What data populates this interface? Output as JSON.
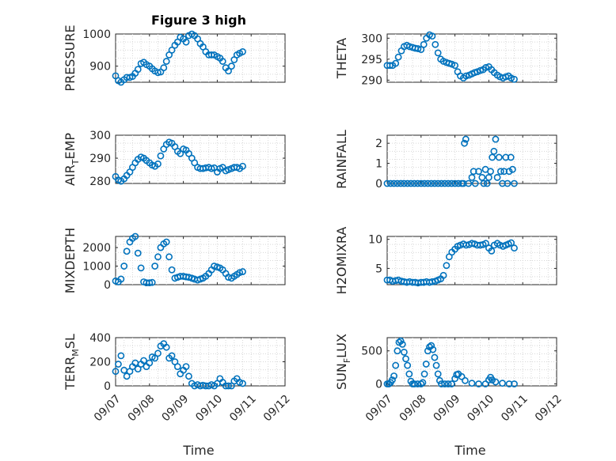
{
  "figure": {
    "title": "Figure 3 high",
    "marker_color": "#0072BD",
    "xlabel": "Time"
  },
  "chart_data": [
    {
      "id": "pressure",
      "type": "scatter",
      "ylabel": "PRESSURE",
      "ylim": [
        850,
        1000
      ],
      "yticks": [
        900,
        1000
      ],
      "x_tick_labels": [],
      "grid": true,
      "x": [
        0,
        0.08,
        0.16,
        0.25,
        0.33,
        0.42,
        0.5,
        0.58,
        0.66,
        0.75,
        0.83,
        0.91,
        1.0,
        1.08,
        1.16,
        1.25,
        1.33,
        1.42,
        1.5,
        1.58,
        1.66,
        1.75,
        1.83,
        1.91,
        2.0,
        2.08,
        2.16,
        2.25,
        2.33,
        2.42,
        2.5,
        2.58,
        2.66,
        2.75,
        2.83,
        2.91,
        3.0,
        3.08,
        3.16,
        3.25,
        3.33,
        3.42,
        3.5,
        3.58,
        3.66,
        3.75
      ],
      "y": [
        870,
        855,
        850,
        858,
        865,
        865,
        868,
        878,
        890,
        908,
        912,
        905,
        900,
        892,
        885,
        880,
        882,
        895,
        915,
        935,
        950,
        965,
        975,
        990,
        985,
        975,
        995,
        1000,
        995,
        985,
        970,
        960,
        945,
        935,
        935,
        935,
        930,
        925,
        915,
        895,
        885,
        900,
        920,
        935,
        940,
        945
      ]
    },
    {
      "id": "theta",
      "type": "scatter",
      "ylabel": "THETA",
      "ylim": [
        289.5,
        301
      ],
      "yticks": [
        290,
        295,
        300
      ],
      "x_tick_labels": [],
      "grid": true,
      "x": [
        0,
        0.08,
        0.16,
        0.25,
        0.33,
        0.42,
        0.5,
        0.58,
        0.66,
        0.75,
        0.83,
        0.91,
        1.0,
        1.08,
        1.16,
        1.25,
        1.33,
        1.42,
        1.5,
        1.58,
        1.66,
        1.75,
        1.83,
        1.91,
        2.0,
        2.08,
        2.16,
        2.25,
        2.33,
        2.42,
        2.5,
        2.58,
        2.66,
        2.75,
        2.83,
        2.91,
        3.0,
        3.08,
        3.16,
        3.25,
        3.33,
        3.42,
        3.5,
        3.58,
        3.66,
        3.75
      ],
      "y": [
        293.5,
        293.5,
        293.5,
        294,
        295.5,
        297,
        298,
        298.3,
        298,
        297.8,
        297.6,
        297.5,
        297.3,
        298.5,
        300,
        300.8,
        300.5,
        298.5,
        296.5,
        295,
        294.5,
        294.2,
        294,
        293.8,
        293.5,
        292,
        291,
        290.5,
        291,
        291.2,
        291.5,
        291.8,
        292,
        292.3,
        292.5,
        293,
        293.2,
        292.5,
        291.8,
        291.2,
        290.8,
        290.5,
        290.8,
        291,
        290.5,
        290.2
      ]
    },
    {
      "id": "air_temp",
      "type": "scatter",
      "ylabel": "AIR_TEMP",
      "ylabel_display": "AIR",
      "ylabel_sub": "T",
      "ylabel_tail": "EMP",
      "ylim": [
        279,
        300
      ],
      "yticks": [
        280,
        290,
        300
      ],
      "x_tick_labels": [],
      "grid": true,
      "x": [
        0,
        0.08,
        0.16,
        0.25,
        0.33,
        0.42,
        0.5,
        0.58,
        0.66,
        0.75,
        0.83,
        0.91,
        1.0,
        1.08,
        1.16,
        1.25,
        1.33,
        1.42,
        1.5,
        1.58,
        1.66,
        1.75,
        1.83,
        1.91,
        2.0,
        2.08,
        2.16,
        2.25,
        2.33,
        2.42,
        2.5,
        2.58,
        2.66,
        2.75,
        2.83,
        2.91,
        3.0,
        3.08,
        3.16,
        3.25,
        3.33,
        3.42,
        3.5,
        3.58,
        3.66,
        3.75
      ],
      "y": [
        282,
        280.5,
        280,
        281,
        282.5,
        284,
        286,
        288,
        289.5,
        290.5,
        290,
        289,
        288,
        287,
        286.5,
        287.5,
        291,
        294,
        296,
        297,
        296.5,
        295,
        293,
        292,
        294,
        293.5,
        292,
        290,
        288,
        286,
        285.5,
        285.5,
        285.8,
        286,
        285.5,
        285.8,
        284,
        285.5,
        286,
        284.5,
        285,
        285.5,
        286,
        286,
        285.5,
        286.5
      ]
    },
    {
      "id": "rainfall",
      "type": "scatter",
      "ylabel": "RAINFALL",
      "ylim": [
        0,
        2.4
      ],
      "yticks": [
        0,
        1,
        2
      ],
      "x_tick_labels": [],
      "grid": true,
      "x": [
        0,
        0.1,
        0.2,
        0.3,
        0.4,
        0.5,
        0.6,
        0.7,
        0.8,
        0.9,
        1.0,
        1.1,
        1.2,
        1.3,
        1.4,
        1.5,
        1.6,
        1.7,
        1.8,
        1.9,
        2.0,
        2.1,
        2.2,
        2.25,
        2.28,
        2.32,
        2.4,
        2.5,
        2.55,
        2.6,
        2.7,
        2.8,
        2.85,
        2.9,
        2.95,
        3.0,
        3.05,
        3.1,
        3.15,
        3.2,
        3.25,
        3.3,
        3.35,
        3.4,
        3.45,
        3.5,
        3.55,
        3.6,
        3.65,
        3.7,
        3.75
      ],
      "y": [
        0,
        0,
        0,
        0,
        0,
        0,
        0,
        0,
        0,
        0,
        0,
        0,
        0,
        0,
        0,
        0,
        0,
        0,
        0,
        0,
        0,
        0,
        0,
        0,
        2.0,
        2.2,
        0,
        0.3,
        0.6,
        0,
        0.6,
        0.3,
        0,
        0.7,
        0,
        0.3,
        0.6,
        1.3,
        1.6,
        2.2,
        0.3,
        1.3,
        0.6,
        0,
        0.6,
        1.3,
        0,
        0.6,
        1.3,
        0.7,
        0
      ]
    },
    {
      "id": "mixdepth",
      "type": "scatter",
      "ylabel": "MIXDEPTH",
      "ylim": [
        0,
        2600
      ],
      "yticks": [
        0,
        1000,
        2000
      ],
      "x_tick_labels": [],
      "grid": true,
      "x": [
        0,
        0.08,
        0.16,
        0.25,
        0.33,
        0.42,
        0.5,
        0.58,
        0.66,
        0.75,
        0.83,
        0.91,
        1.0,
        1.08,
        1.16,
        1.25,
        1.33,
        1.42,
        1.5,
        1.58,
        1.66,
        1.75,
        1.83,
        1.91,
        2.0,
        2.08,
        2.16,
        2.25,
        2.33,
        2.42,
        2.5,
        2.58,
        2.66,
        2.75,
        2.83,
        2.91,
        3.0,
        3.08,
        3.16,
        3.25,
        3.33,
        3.42,
        3.5,
        3.58,
        3.66,
        3.75
      ],
      "y": [
        200,
        150,
        300,
        1000,
        1800,
        2300,
        2500,
        2600,
        1700,
        900,
        150,
        100,
        100,
        120,
        1000,
        1500,
        2000,
        2200,
        2300,
        1500,
        800,
        350,
        400,
        450,
        450,
        420,
        400,
        350,
        300,
        250,
        300,
        350,
        450,
        600,
        800,
        1000,
        950,
        900,
        800,
        600,
        400,
        350,
        450,
        550,
        650,
        700
      ]
    },
    {
      "id": "h2omixra",
      "type": "scatter",
      "ylabel": "H2OMIXRA",
      "ylim": [
        2.2,
        10.5
      ],
      "yticks": [
        5,
        10
      ],
      "x_tick_labels": [],
      "grid": true,
      "x": [
        0,
        0.08,
        0.16,
        0.25,
        0.33,
        0.42,
        0.5,
        0.58,
        0.66,
        0.75,
        0.83,
        0.91,
        1.0,
        1.08,
        1.16,
        1.25,
        1.33,
        1.42,
        1.5,
        1.58,
        1.66,
        1.75,
        1.83,
        1.91,
        2.0,
        2.08,
        2.16,
        2.25,
        2.33,
        2.42,
        2.5,
        2.58,
        2.66,
        2.75,
        2.83,
        2.91,
        3.0,
        3.08,
        3.16,
        3.25,
        3.33,
        3.42,
        3.5,
        3.58,
        3.66,
        3.75
      ],
      "y": [
        3.0,
        3.0,
        2.8,
        2.9,
        3.0,
        2.8,
        2.7,
        2.6,
        2.7,
        2.6,
        2.6,
        2.5,
        2.6,
        2.6,
        2.7,
        2.6,
        2.7,
        2.8,
        3.0,
        3.2,
        3.8,
        5.5,
        7.0,
        7.8,
        8.3,
        8.8,
        9.0,
        9.2,
        9.0,
        9.1,
        9.3,
        9.2,
        9.0,
        9.0,
        9.1,
        9.3,
        8.5,
        8.0,
        9.0,
        9.3,
        9.0,
        8.8,
        9.0,
        9.2,
        9.4,
        8.5
      ]
    },
    {
      "id": "terr_msl",
      "type": "scatter",
      "ylabel": "TERR_MSL",
      "ylabel_display": "TERR",
      "ylabel_sub": "M",
      "ylabel_tail": "SL",
      "ylim": [
        0,
        400
      ],
      "yticks": [
        0,
        200,
        400
      ],
      "x_tick_labels": [
        "09/07",
        "09/08",
        "09/09",
        "09/10",
        "09/11",
        "09/12"
      ],
      "grid": true,
      "x": [
        0,
        0.08,
        0.16,
        0.25,
        0.33,
        0.42,
        0.5,
        0.58,
        0.66,
        0.75,
        0.83,
        0.91,
        1.0,
        1.08,
        1.16,
        1.25,
        1.33,
        1.42,
        1.5,
        1.58,
        1.66,
        1.75,
        1.83,
        1.91,
        2.0,
        2.08,
        2.16,
        2.25,
        2.33,
        2.42,
        2.5,
        2.58,
        2.66,
        2.75,
        2.83,
        2.91,
        3.0,
        3.08,
        3.16,
        3.25,
        3.33,
        3.42,
        3.5,
        3.58,
        3.66,
        3.75
      ],
      "y": [
        120,
        180,
        250,
        130,
        80,
        120,
        160,
        190,
        140,
        180,
        210,
        160,
        190,
        240,
        230,
        270,
        330,
        350,
        320,
        230,
        250,
        200,
        160,
        100,
        130,
        160,
        80,
        20,
        0,
        10,
        0,
        5,
        0,
        0,
        10,
        0,
        20,
        60,
        30,
        0,
        0,
        0,
        40,
        60,
        30,
        20
      ]
    },
    {
      "id": "sun_flux",
      "type": "scatter",
      "ylabel": "SUN_FLUX",
      "ylabel_display": "SUN",
      "ylabel_sub": "F",
      "ylabel_tail": "LUX",
      "ylim": [
        -30,
        700
      ],
      "yticks": [
        0,
        500
      ],
      "x_tick_labels": [
        "09/07",
        "09/08",
        "09/09",
        "09/10",
        "09/11",
        "09/12"
      ],
      "grid": true,
      "x": [
        0,
        0.05,
        0.1,
        0.15,
        0.2,
        0.25,
        0.3,
        0.35,
        0.4,
        0.45,
        0.5,
        0.55,
        0.6,
        0.65,
        0.7,
        0.75,
        0.8,
        0.9,
        1.0,
        1.05,
        1.1,
        1.15,
        1.2,
        1.25,
        1.3,
        1.35,
        1.4,
        1.45,
        1.5,
        1.55,
        1.6,
        1.7,
        1.8,
        1.9,
        2.0,
        2.05,
        2.1,
        2.2,
        2.3,
        2.5,
        2.7,
        2.9,
        3.0,
        3.05,
        3.1,
        3.2,
        3.4,
        3.6,
        3.75
      ],
      "y": [
        0,
        0,
        20,
        60,
        120,
        280,
        500,
        630,
        650,
        600,
        480,
        380,
        280,
        150,
        40,
        0,
        0,
        0,
        0,
        20,
        150,
        300,
        500,
        560,
        580,
        520,
        400,
        280,
        150,
        50,
        0,
        0,
        0,
        0,
        80,
        140,
        150,
        110,
        50,
        10,
        0,
        0,
        60,
        100,
        60,
        30,
        10,
        0,
        0
      ]
    }
  ]
}
